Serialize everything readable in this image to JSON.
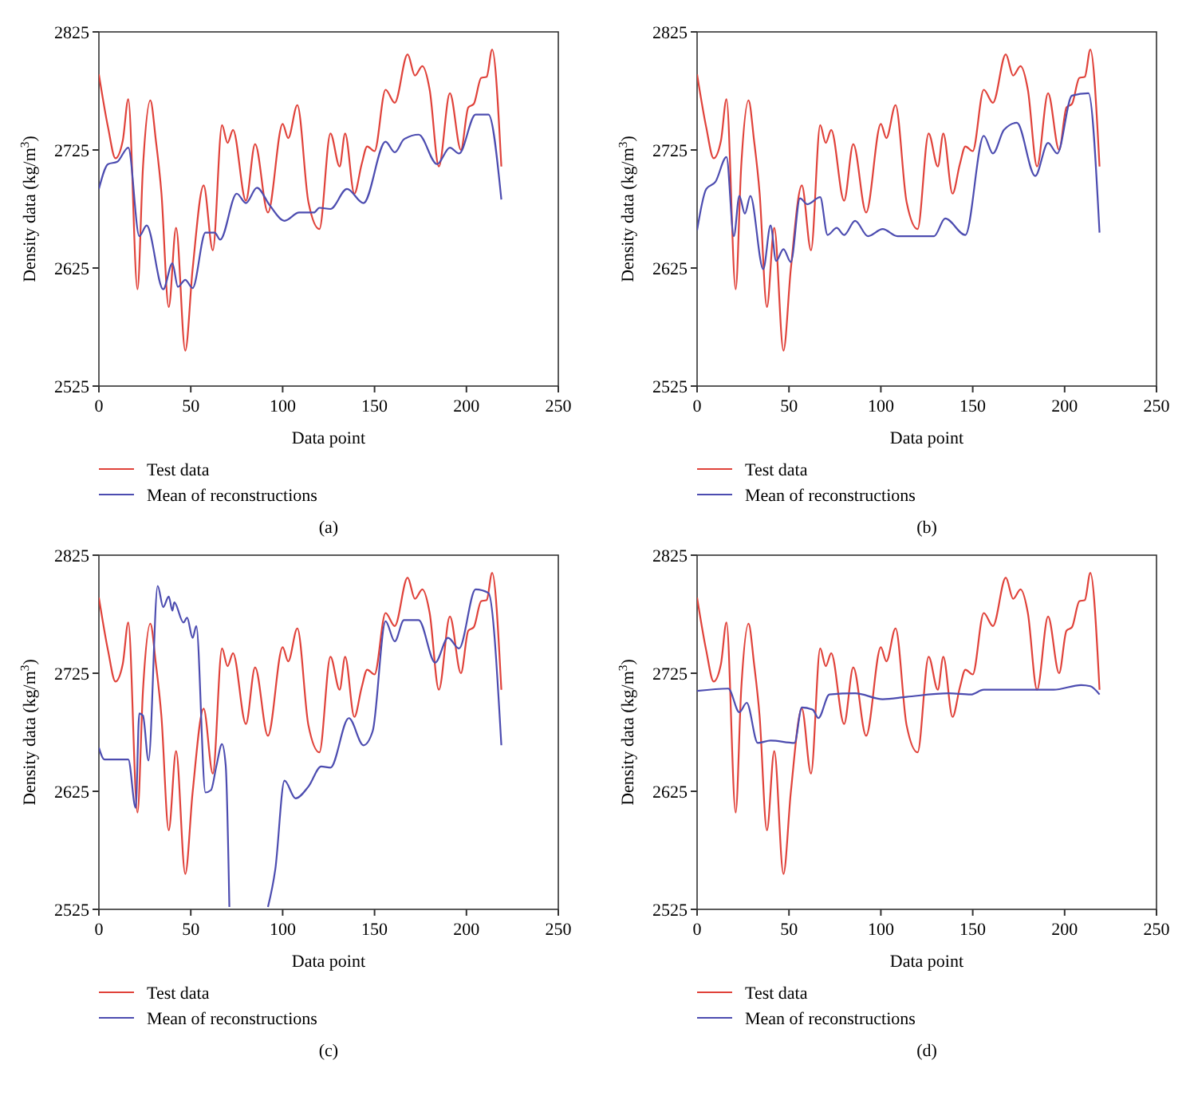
{
  "chart_data": [
    {
      "type": "line",
      "xlabel": "Data point",
      "ylabel": "Density data (kg/m$^{3}$)",
      "annotations": [
        "(a)"
      ],
      "xlim": [
        0,
        250
      ],
      "xticks": [
        0,
        50,
        100,
        150,
        200,
        250
      ],
      "ylim": [
        2525,
        2825
      ],
      "yticks": [
        2525,
        2625,
        2725,
        2825
      ],
      "legend": "bottom",
      "grid": false,
      "series": [
        {
          "name": "Test data",
          "color": "#e0423a",
          "x": [
            0,
            5,
            9,
            13,
            16,
            21,
            24,
            28,
            31,
            34,
            38,
            42,
            47,
            51,
            57,
            62,
            67,
            70,
            73,
            80,
            85,
            92,
            100,
            103,
            108,
            114,
            120,
            126,
            131,
            134,
            139,
            143,
            146,
            150,
            156,
            161,
            168,
            172,
            176,
            180,
            185,
            191,
            197,
            201,
            204,
            208,
            211,
            214,
            219
          ],
          "values": [
            2789,
            2744,
            2718,
            2733,
            2768,
            2607,
            2711,
            2767,
            2733,
            2689,
            2592,
            2659,
            2555,
            2624,
            2695,
            2640,
            2746,
            2731,
            2742,
            2682,
            2730,
            2672,
            2747,
            2735,
            2763,
            2681,
            2658,
            2739,
            2711,
            2739,
            2688,
            2713,
            2728,
            2724,
            2776,
            2765,
            2806,
            2788,
            2796,
            2776,
            2711,
            2773,
            2725,
            2761,
            2764,
            2786,
            2787,
            2810,
            2711
          ]
        },
        {
          "name": "Mean of reconstructions",
          "color": "#4c4cb0",
          "x": [
            0,
            5,
            10,
            16,
            22,
            26,
            35,
            40,
            43,
            47,
            51,
            58,
            63,
            66,
            75,
            80,
            86,
            93,
            101,
            109,
            117,
            120,
            126,
            135,
            144,
            156,
            161,
            166,
            174,
            184,
            191,
            196,
            205,
            212,
            219
          ],
          "values": [
            2692,
            2713,
            2715,
            2727,
            2652,
            2661,
            2607,
            2629,
            2609,
            2615,
            2608,
            2655,
            2655,
            2649,
            2688,
            2680,
            2693,
            2678,
            2665,
            2672,
            2672,
            2676,
            2675,
            2692,
            2680,
            2732,
            2723,
            2734,
            2738,
            2713,
            2727,
            2722,
            2755,
            2755,
            2683
          ]
        }
      ]
    },
    {
      "type": "line",
      "xlabel": "Data point",
      "ylabel": "Density data (kg/m$^{3}$)",
      "annotations": [
        "(b)"
      ],
      "xlim": [
        0,
        250
      ],
      "xticks": [
        0,
        50,
        100,
        150,
        200,
        250
      ],
      "ylim": [
        2525,
        2825
      ],
      "yticks": [
        2525,
        2625,
        2725,
        2825
      ],
      "legend": "bottom",
      "grid": false,
      "series": [
        {
          "name": "Test data",
          "color": "#e0423a",
          "x": [
            0,
            5,
            9,
            13,
            16,
            21,
            24,
            28,
            31,
            34,
            38,
            42,
            47,
            51,
            57,
            62,
            67,
            70,
            73,
            80,
            85,
            92,
            100,
            103,
            108,
            114,
            120,
            126,
            131,
            134,
            139,
            143,
            146,
            150,
            156,
            161,
            168,
            172,
            176,
            180,
            185,
            191,
            197,
            201,
            204,
            208,
            211,
            214,
            219
          ],
          "values": [
            2789,
            2744,
            2718,
            2733,
            2768,
            2607,
            2711,
            2767,
            2733,
            2689,
            2592,
            2659,
            2555,
            2624,
            2695,
            2640,
            2746,
            2731,
            2742,
            2682,
            2730,
            2672,
            2747,
            2735,
            2763,
            2681,
            2658,
            2739,
            2711,
            2739,
            2688,
            2713,
            2728,
            2724,
            2776,
            2765,
            2806,
            2788,
            2796,
            2776,
            2711,
            2773,
            2725,
            2761,
            2764,
            2786,
            2787,
            2810,
            2711
          ]
        },
        {
          "name": "Mean of reconstructions",
          "color": "#4c4cb0",
          "x": [
            0,
            5,
            10,
            16,
            20,
            23,
            26,
            29,
            36,
            40,
            43,
            47,
            51,
            56,
            60,
            67,
            71,
            76,
            80,
            86,
            93,
            101,
            109,
            129,
            135,
            146,
            156,
            161,
            167,
            174,
            184,
            191,
            196,
            204,
            213,
            219
          ],
          "values": [
            2657,
            2692,
            2698,
            2719,
            2652,
            2686,
            2671,
            2686,
            2624,
            2661,
            2631,
            2641,
            2630,
            2684,
            2679,
            2685,
            2653,
            2659,
            2653,
            2665,
            2652,
            2658,
            2652,
            2652,
            2667,
            2653,
            2737,
            2722,
            2742,
            2748,
            2703,
            2731,
            2722,
            2771,
            2773,
            2655
          ]
        }
      ]
    },
    {
      "type": "line",
      "xlabel": "Data point",
      "ylabel": "Density data (kg/m$^{3}$)",
      "annotations": [
        "(c)"
      ],
      "xlim": [
        0,
        250
      ],
      "xticks": [
        0,
        50,
        100,
        150,
        200,
        250
      ],
      "ylim": [
        2525,
        2825
      ],
      "yticks": [
        2525,
        2625,
        2725,
        2825
      ],
      "legend": "bottom",
      "grid": false,
      "series": [
        {
          "name": "Test data",
          "color": "#e0423a",
          "x": [
            0,
            5,
            9,
            13,
            16,
            21,
            24,
            28,
            31,
            34,
            38,
            42,
            47,
            51,
            57,
            62,
            67,
            70,
            73,
            80,
            85,
            92,
            100,
            103,
            108,
            114,
            120,
            126,
            131,
            134,
            139,
            143,
            146,
            150,
            156,
            161,
            168,
            172,
            176,
            180,
            185,
            191,
            197,
            201,
            204,
            208,
            211,
            214,
            219
          ],
          "values": [
            2789,
            2744,
            2718,
            2733,
            2768,
            2607,
            2711,
            2767,
            2733,
            2689,
            2592,
            2659,
            2555,
            2624,
            2695,
            2640,
            2746,
            2731,
            2742,
            2682,
            2730,
            2672,
            2747,
            2735,
            2763,
            2681,
            2658,
            2739,
            2711,
            2739,
            2688,
            2713,
            2728,
            2724,
            2776,
            2765,
            2806,
            2788,
            2796,
            2776,
            2711,
            2773,
            2725,
            2761,
            2764,
            2786,
            2787,
            2810,
            2711
          ]
        },
        {
          "name": "Mean of reconstructions",
          "color": "#4c4cb0",
          "x": [
            0,
            3,
            16,
            20,
            22,
            24,
            27,
            32,
            35,
            38,
            40,
            41,
            46,
            48,
            51,
            53,
            58,
            61,
            64,
            67,
            69,
            71,
            72,
            92,
            96,
            101,
            107,
            114,
            121,
            126,
            136,
            144,
            149,
            156,
            161,
            166,
            174,
            183,
            190,
            196,
            205,
            212,
            219
          ],
          "values": [
            2662,
            2652,
            2652,
            2611,
            2691,
            2689,
            2651,
            2799,
            2781,
            2790,
            2778,
            2785,
            2768,
            2772,
            2755,
            2765,
            2624,
            2626,
            2647,
            2665,
            2647,
            2527,
            null,
            2527,
            2559,
            2634,
            2619,
            2629,
            2646,
            2645,
            2687,
            2664,
            2676,
            2769,
            2752,
            2770,
            2770,
            2734,
            2755,
            2746,
            2796,
            2793,
            2664
          ]
        }
      ]
    },
    {
      "type": "line",
      "xlabel": "Data point",
      "ylabel": "Density data (kg/m$^{3}$)",
      "annotations": [
        "(d)"
      ],
      "xlim": [
        0,
        250
      ],
      "xticks": [
        0,
        50,
        100,
        150,
        200,
        250
      ],
      "ylim": [
        2525,
        2825
      ],
      "yticks": [
        2525,
        2625,
        2725,
        2825
      ],
      "legend": "bottom",
      "grid": false,
      "series": [
        {
          "name": "Test data",
          "color": "#e0423a",
          "x": [
            0,
            5,
            9,
            13,
            16,
            21,
            24,
            28,
            31,
            34,
            38,
            42,
            47,
            51,
            57,
            62,
            67,
            70,
            73,
            80,
            85,
            92,
            100,
            103,
            108,
            114,
            120,
            126,
            131,
            134,
            139,
            143,
            146,
            150,
            156,
            161,
            168,
            172,
            176,
            180,
            185,
            191,
            197,
            201,
            204,
            208,
            211,
            214,
            219
          ],
          "values": [
            2789,
            2744,
            2718,
            2733,
            2768,
            2607,
            2711,
            2767,
            2733,
            2689,
            2592,
            2659,
            2555,
            2624,
            2695,
            2640,
            2746,
            2731,
            2742,
            2682,
            2730,
            2672,
            2747,
            2735,
            2763,
            2681,
            2658,
            2739,
            2711,
            2739,
            2688,
            2713,
            2728,
            2724,
            2776,
            2765,
            2806,
            2788,
            2796,
            2776,
            2711,
            2773,
            2725,
            2761,
            2764,
            2786,
            2787,
            2810,
            2711
          ]
        },
        {
          "name": "Mean of reconstructions",
          "color": "#4c4cb0",
          "x": [
            0,
            17,
            23,
            27,
            33,
            40,
            53,
            57,
            63,
            66,
            72,
            86,
            101,
            114,
            137,
            149,
            156,
            194,
            209,
            214,
            219
          ],
          "values": [
            2710,
            2712,
            2692,
            2700,
            2666,
            2668,
            2666,
            2696,
            2694,
            2687,
            2707,
            2708,
            2703,
            2705,
            2708,
            2707,
            2711,
            2711,
            2715,
            2714,
            2707
          ]
        }
      ]
    }
  ]
}
